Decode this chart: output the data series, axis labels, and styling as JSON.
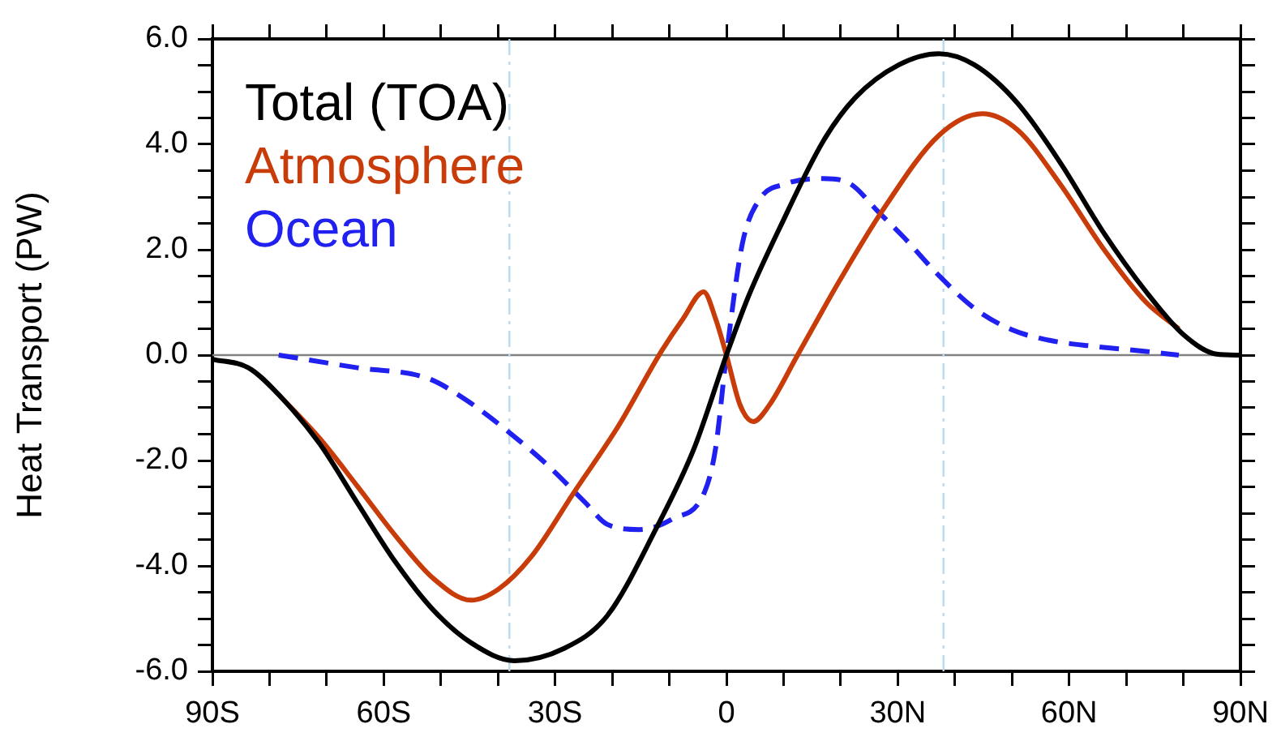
{
  "chart_data": {
    "type": "line",
    "ylabel": "Heat Transport (PW)",
    "legend": "top left",
    "marker": "none",
    "grid": false,
    "xlim": [
      -90,
      90
    ],
    "xticks": [
      {
        "value": -90,
        "label": "90S"
      },
      {
        "value": -80,
        "label": null
      },
      {
        "value": -70,
        "label": null
      },
      {
        "value": -60,
        "label": "60S"
      },
      {
        "value": -50,
        "label": null
      },
      {
        "value": -40,
        "label": null
      },
      {
        "value": -30,
        "label": "30S"
      },
      {
        "value": -20,
        "label": null
      },
      {
        "value": -10,
        "label": null
      },
      {
        "value": 0,
        "label": "0"
      },
      {
        "value": 10,
        "label": null
      },
      {
        "value": 20,
        "label": null
      },
      {
        "value": 30,
        "label": "30N"
      },
      {
        "value": 40,
        "label": null
      },
      {
        "value": 50,
        "label": null
      },
      {
        "value": 60,
        "label": "60N"
      },
      {
        "value": 70,
        "label": null
      },
      {
        "value": 80,
        "label": null
      },
      {
        "value": 90,
        "label": "90N"
      }
    ],
    "ylim": [
      -6,
      6
    ],
    "yticks": [
      {
        "value": -6,
        "label": "-6.0"
      },
      {
        "value": -5.5,
        "label": null
      },
      {
        "value": -5,
        "label": null
      },
      {
        "value": -4.5,
        "label": null
      },
      {
        "value": -4,
        "label": "-4.0"
      },
      {
        "value": -3.5,
        "label": null
      },
      {
        "value": -3,
        "label": null
      },
      {
        "value": -2.5,
        "label": null
      },
      {
        "value": -2,
        "label": "-2.0"
      },
      {
        "value": -1.5,
        "label": null
      },
      {
        "value": -1,
        "label": null
      },
      {
        "value": -0.5,
        "label": null
      },
      {
        "value": 0,
        "label": "0.0"
      },
      {
        "value": 0.5,
        "label": null
      },
      {
        "value": 1,
        "label": null
      },
      {
        "value": 1.5,
        "label": null
      },
      {
        "value": 2,
        "label": "2.0"
      },
      {
        "value": 2.5,
        "label": null
      },
      {
        "value": 3,
        "label": null
      },
      {
        "value": 3.5,
        "label": null
      },
      {
        "value": 4,
        "label": "4.0"
      },
      {
        "value": 4.5,
        "label": null
      },
      {
        "value": 5,
        "label": null
      },
      {
        "value": 5.5,
        "label": null
      },
      {
        "value": 6,
        "label": "6.0"
      }
    ],
    "ref_lines": [
      {
        "axis": "y",
        "value": 0,
        "label": null,
        "color": "#808080",
        "line_style": "solid"
      },
      {
        "axis": "x",
        "value": -38,
        "label": null,
        "color": "#b8dcea",
        "line_style": "dashdot"
      },
      {
        "axis": "x",
        "value": 38,
        "label": null,
        "color": "#b8dcea",
        "line_style": "dashdot"
      }
    ],
    "series": [
      {
        "name": "Total (TOA)",
        "color": "#000000",
        "line_style": "solid",
        "x": [
          -90,
          -83.7,
          -78.4,
          -71.3,
          -64.6,
          -58,
          -51.3,
          -44.7,
          -37.1,
          -28.5,
          -20.9,
          -12.4,
          -5.7,
          0,
          3.8,
          9.4,
          17,
          22.6,
          30.2,
          37.2,
          43.4,
          50.9,
          58.4,
          66,
          73.5,
          80.1,
          85.8,
          90
        ],
        "values": [
          -0.08,
          -0.24,
          -0.75,
          -1.67,
          -2.81,
          -3.92,
          -4.84,
          -5.46,
          -5.8,
          -5.57,
          -4.95,
          -3.31,
          -1.78,
          0,
          1.1,
          2.43,
          4.07,
          4.89,
          5.51,
          5.72,
          5.51,
          4.79,
          3.66,
          2.33,
          1.2,
          0.38,
          0.02,
          0
        ]
      },
      {
        "name": "Atmosphere",
        "color": "#c83c0a",
        "line_style": "solid",
        "x": [
          -78.4,
          -71.3,
          -64.6,
          -58,
          -51.3,
          -44.7,
          -39.9,
          -34.2,
          -26.6,
          -19,
          -11.4,
          -7.6,
          -4,
          -1.9,
          0,
          2.4,
          4.7,
          7.5,
          12.3,
          19.8,
          27.3,
          37.2,
          44.8,
          50.9,
          58.4,
          66,
          73.5,
          79.2
        ],
        "values": [
          -0.75,
          -1.57,
          -2.49,
          -3.42,
          -4.24,
          -4.65,
          -4.44,
          -3.83,
          -2.59,
          -1.36,
          0.07,
          0.69,
          1.2,
          0.69,
          0,
          -0.95,
          -1.26,
          -0.95,
          -0.03,
          1.41,
          2.74,
          4.17,
          4.58,
          4.28,
          3.25,
          2.02,
          1,
          0.5
        ]
      },
      {
        "name": "Ocean",
        "color": "#2020f0",
        "line_style": "dashed",
        "x": [
          -78.4,
          -64.6,
          -52.3,
          -45.6,
          -38,
          -31.4,
          -24.7,
          -20.9,
          -15.2,
          -9.5,
          -3.8,
          -1.9,
          0,
          2.8,
          5.7,
          10.4,
          17,
          21.7,
          26.4,
          31.1,
          37.2,
          43.4,
          50,
          56.6,
          64.1,
          73.5,
          79.2
        ],
        "values": [
          0,
          -0.24,
          -0.44,
          -0.85,
          -1.47,
          -2.08,
          -2.8,
          -3.21,
          -3.31,
          -3.11,
          -2.59,
          -1.77,
          0,
          2.12,
          2.94,
          3.25,
          3.35,
          3.25,
          2.74,
          2.23,
          1.51,
          0.89,
          0.48,
          0.28,
          0.17,
          0.07,
          0
        ]
      }
    ]
  }
}
